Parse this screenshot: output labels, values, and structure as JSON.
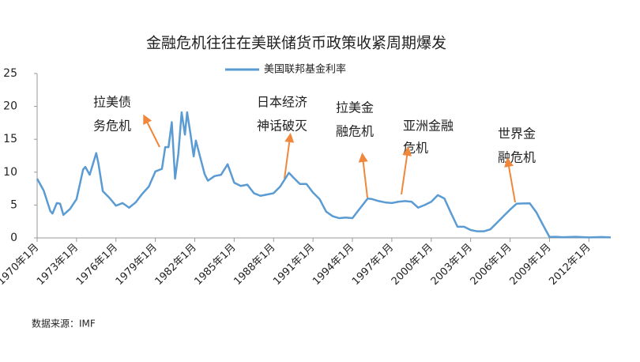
{
  "chart_data": {
    "type": "line",
    "title": "金融危机往往在美联储货币政策收紧周期爆发",
    "source": "数据来源：IMF",
    "annotations": [
      [
        "拉美债",
        "务危机"
      ],
      [
        "日本经济",
        "神话破灭"
      ],
      [
        "拉美金",
        "融危机"
      ],
      [
        "亚洲金融",
        "危机"
      ],
      [
        "世界金",
        "融危机"
      ]
    ],
    "legend": "top",
    "x": [
      "1970-01",
      "1970-07",
      "1971-01",
      "1971-03",
      "1971-07",
      "1971-10",
      "1972-01",
      "1972-07",
      "1973-01",
      "1973-07",
      "1973-09",
      "1974-01",
      "1974-07",
      "1974-09",
      "1975-01",
      "1975-07",
      "1976-01",
      "1976-07",
      "1977-01",
      "1977-07",
      "1978-01",
      "1978-07",
      "1979-01",
      "1979-07",
      "1979-10",
      "1980-01",
      "1980-04",
      "1980-07",
      "1980-10",
      "1981-01",
      "1981-04",
      "1981-06",
      "1981-09",
      "1981-12",
      "1982-02",
      "1982-07",
      "1982-10",
      "1983-01",
      "1983-07",
      "1984-01",
      "1984-07",
      "1985-01",
      "1985-07",
      "1986-01",
      "1986-07",
      "1987-01",
      "1987-07",
      "1988-01",
      "1988-07",
      "1989-03",
      "1989-07",
      "1990-01",
      "1990-07",
      "1991-01",
      "1991-07",
      "1992-01",
      "1992-07",
      "1993-01",
      "1993-07",
      "1994-01",
      "1994-07",
      "1995-03",
      "1995-07",
      "1996-01",
      "1996-07",
      "1997-01",
      "1997-07",
      "1998-01",
      "1998-07",
      "1999-01",
      "1999-07",
      "2000-01",
      "2000-07",
      "2001-01",
      "2001-07",
      "2002-01",
      "2002-07",
      "2003-01",
      "2003-07",
      "2004-01",
      "2004-07",
      "2005-01",
      "2005-07",
      "2006-01",
      "2006-07",
      "2007-01",
      "2007-07",
      "2008-01",
      "2008-07",
      "2009-01",
      "2009-07",
      "2010-01",
      "2011-01",
      "2012-01",
      "2013-01",
      "2013-09"
    ],
    "series": [
      {
        "name": "美国联邦基金利率",
        "color": "#5a9bd3",
        "values": [
          9.0,
          7.2,
          4.1,
          3.7,
          5.3,
          5.2,
          3.5,
          4.4,
          5.9,
          10.4,
          10.8,
          9.6,
          12.9,
          11.3,
          7.1,
          6.1,
          4.9,
          5.3,
          4.6,
          5.4,
          6.7,
          7.8,
          10.1,
          10.5,
          13.8,
          13.8,
          17.6,
          9.0,
          12.8,
          19.1,
          15.7,
          19.1,
          15.9,
          12.4,
          14.8,
          11.6,
          9.7,
          8.7,
          9.4,
          9.6,
          11.2,
          8.4,
          7.9,
          8.1,
          6.8,
          6.4,
          6.6,
          6.8,
          7.8,
          9.9,
          9.2,
          8.2,
          8.2,
          6.9,
          5.9,
          4.0,
          3.3,
          3.0,
          3.1,
          3.0,
          4.3,
          6.0,
          5.9,
          5.6,
          5.4,
          5.3,
          5.5,
          5.6,
          5.5,
          4.6,
          5.0,
          5.5,
          6.5,
          6.0,
          3.8,
          1.7,
          1.7,
          1.2,
          1.0,
          1.0,
          1.3,
          2.3,
          3.3,
          4.3,
          5.2,
          5.25,
          5.26,
          3.9,
          2.0,
          0.15,
          0.16,
          0.11,
          0.17,
          0.08,
          0.14,
          0.08
        ]
      }
    ],
    "xlim": [
      "1970-01",
      "2013-09"
    ],
    "xticks": [
      {
        "value": "1970-01",
        "label": "1970年1月"
      },
      {
        "value": "1973-01",
        "label": "1973年1月"
      },
      {
        "value": "1976-01",
        "label": "1976年1月"
      },
      {
        "value": "1979-01",
        "label": "1979年1月"
      },
      {
        "value": "1982-01",
        "label": "1982年1月"
      },
      {
        "value": "1985-01",
        "label": "1985年1月"
      },
      {
        "value": "1988-01",
        "label": "1988年1月"
      },
      {
        "value": "1991-01",
        "label": "1991年1月"
      },
      {
        "value": "1994-01",
        "label": "1994年1月"
      },
      {
        "value": "1997-01",
        "label": "1997年1月"
      },
      {
        "value": "2000-01",
        "label": "2000年1月"
      },
      {
        "value": "2003-01",
        "label": "2003年1月"
      },
      {
        "value": "2006-01",
        "label": "2006年1月"
      },
      {
        "value": "2009-01",
        "label": "2009年1月"
      },
      {
        "value": "2012-01",
        "label": "2012年1月"
      }
    ],
    "ylim": [
      0,
      25
    ],
    "yticks": [
      0,
      5,
      10,
      15,
      20,
      25
    ],
    "grid": false
  }
}
